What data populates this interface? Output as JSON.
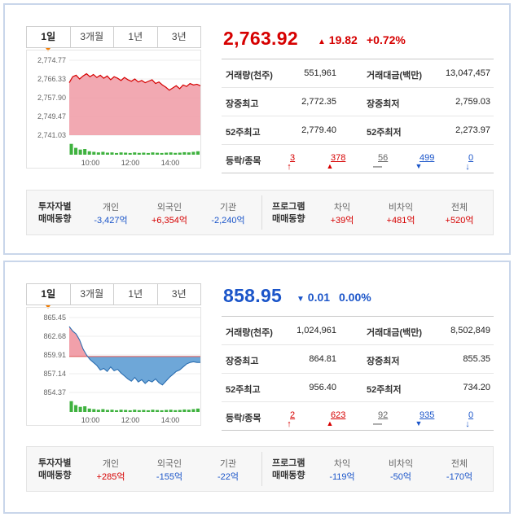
{
  "panels": [
    {
      "tabs": [
        "1일",
        "3개월",
        "1년",
        "3년"
      ],
      "price": "2,763.92",
      "change_arrow": "▲",
      "change_value": "19.82",
      "change_pct": "+0.72%",
      "yticks": [
        "2,774.77",
        "2,766.33",
        "2,757.90",
        "2,749.47",
        "2,741.03"
      ],
      "xticks": [
        "10:00",
        "12:00",
        "14:00"
      ],
      "stats": {
        "volume_label": "거래량(천주)",
        "volume": "551,961",
        "amount_label": "거래대금(백만)",
        "amount": "13,047,457",
        "high_label": "장중최고",
        "high": "2,772.35",
        "low_label": "장중최저",
        "low": "2,759.03",
        "w52high_label": "52주최고",
        "w52high": "2,779.40",
        "w52low_label": "52주최저",
        "w52low": "2,273.97",
        "updown_label": "등락/종목",
        "upper_limit": "3",
        "rise": "378",
        "unchanged": "56",
        "fall": "499",
        "lower_limit": "0"
      },
      "flow": {
        "investor_title_1": "투자자별",
        "investor_title_2": "매매동향",
        "program_title_1": "프로그램",
        "program_title_2": "매매동향",
        "individual_label": "개인",
        "individual": "-3,427억",
        "foreign_label": "외국인",
        "foreign": "+6,354억",
        "institution_label": "기관",
        "institution": "-2,240억",
        "arbitrage_label": "차익",
        "arbitrage": "+39억",
        "nonarbitrage_label": "비차익",
        "nonarbitrage": "+481억",
        "total_label": "전체",
        "total": "+520억"
      }
    },
    {
      "tabs": [
        "1일",
        "3개월",
        "1년",
        "3년"
      ],
      "price": "858.95",
      "change_arrow": "▼",
      "change_value": "0.01",
      "change_pct": "0.00%",
      "yticks": [
        "865.45",
        "862.68",
        "859.91",
        "857.14",
        "854.37"
      ],
      "xticks": [
        "10:00",
        "12:00",
        "14:00"
      ],
      "stats": {
        "volume_label": "거래량(천주)",
        "volume": "1,024,961",
        "amount_label": "거래대금(백만)",
        "amount": "8,502,849",
        "high_label": "장중최고",
        "high": "864.81",
        "low_label": "장중최저",
        "low": "855.35",
        "w52high_label": "52주최고",
        "w52high": "956.40",
        "w52low_label": "52주최저",
        "w52low": "734.20",
        "updown_label": "등락/종목",
        "upper_limit": "2",
        "rise": "623",
        "unchanged": "92",
        "fall": "935",
        "lower_limit": "0"
      },
      "flow": {
        "investor_title_1": "투자자별",
        "investor_title_2": "매매동향",
        "program_title_1": "프로그램",
        "program_title_2": "매매동향",
        "individual_label": "개인",
        "individual": "+285억",
        "foreign_label": "외국인",
        "foreign": "-155억",
        "institution_label": "기관",
        "institution": "-22억",
        "arbitrage_label": "차익",
        "arbitrage": "-119억",
        "nonarbitrage_label": "비차익",
        "nonarbitrage": "-50억",
        "total_label": "전체",
        "total": "-170억"
      }
    }
  ],
  "colors": {
    "up": "#d60000",
    "down": "#1b55c9",
    "up_fill": "#f1a0aa",
    "down_fill": "#6ea7d8",
    "volume": "#3fb23f"
  }
}
